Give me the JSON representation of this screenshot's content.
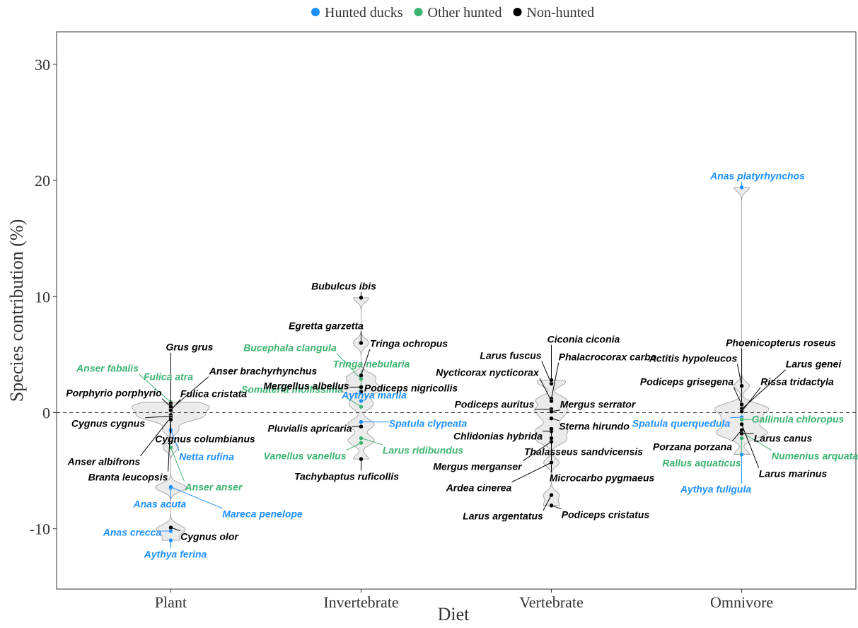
{
  "chart_data": {
    "type": "violin",
    "x_label": "Diet",
    "y_label": "Species contribution (%)",
    "categories": [
      "Plant",
      "Invertebrate",
      "Vertebrate",
      "Omnivore"
    ],
    "ylim": [
      -15.2,
      32.8
    ],
    "yticks": [
      -10,
      0,
      10,
      20,
      30
    ],
    "hline": 0,
    "legend": "top",
    "series": [
      {
        "name": "Hunted ducks",
        "color": "#1e90ff",
        "species": [
          "Netta rufina",
          "Anas acuta",
          "Mareca penelope",
          "Anas crecca",
          "Aythya ferina",
          "Aythya marila",
          "Spatula clypeata",
          "Anas platyrhynchos",
          "Spatula querquedula",
          "Aythya fuligula"
        ],
        "categories": [
          "Plant",
          "Plant",
          "Plant",
          "Plant",
          "Plant",
          "Invertebrate",
          "Invertebrate",
          "Omnivore",
          "Omnivore",
          "Omnivore"
        ],
        "values": [
          -1.5,
          -6.5,
          -6.4,
          -10.2,
          -11.0,
          1.0,
          -0.8,
          19.4,
          -0.4,
          -3.6
        ]
      },
      {
        "name": "Other hunted",
        "color": "#3cb371",
        "species": [
          "Anser fabalis",
          "Fulica atra",
          "Anser anser",
          "Bucephala clangula",
          "Tringa nebularia",
          "Somateria mollissima",
          "Vanellus vanellus",
          "Larus ridibundus",
          "Gallinula chloropus",
          "Rallus aquaticus",
          "Numenius arquata"
        ],
        "categories": [
          "Plant",
          "Plant",
          "Plant",
          "Invertebrate",
          "Invertebrate",
          "Invertebrate",
          "Invertebrate",
          "Invertebrate",
          "Omnivore",
          "Omnivore",
          "Omnivore"
        ],
        "values": [
          0.9,
          0.6,
          -3.0,
          2.9,
          2.1,
          0.5,
          -2.6,
          -2.2,
          -0.6,
          -2.2,
          -1.7
        ]
      },
      {
        "name": "Non-hunted",
        "color": "#000000",
        "species": [
          "Grus grus",
          "Anser brachyrhynchus",
          "Porphyrio porphyrio",
          "Fulica cristata",
          "Cygnus cygnus",
          "Cygnus columbianus",
          "Anser albifrons",
          "Branta leucopsis",
          "Cygnus olor",
          "Bubulcus ibis",
          "Egretta garzetta",
          "Tringa ochropus",
          "Mergellus albellus",
          "Podiceps nigricollis",
          "Pluvialis apricaria",
          "Tachybaptus ruficollis",
          "Larus fuscus",
          "Ciconia ciconia",
          "Phalacrocorax carbo",
          "Nycticorax nycticorax",
          "Podiceps auritus",
          "Mergus serrator",
          "Sterna hirundo",
          "Chlidonias hybrida",
          "Thalasseus sandvicensis",
          "Mergus merganser",
          "Microcarbo pygmaeus",
          "Ardea cinerea",
          "Larus argentatus",
          "Podiceps cristatus",
          "Phoenicopterus roseus",
          "Actitis hypoleucos",
          "Larus genei",
          "Podiceps grisegena",
          "Rissa tridactyla",
          "Larus canus",
          "Porzana porzana",
          "Larus marinus"
        ],
        "categories": [
          "Plant",
          "Plant",
          "Plant",
          "Plant",
          "Plant",
          "Plant",
          "Plant",
          "Plant",
          "Plant",
          "Invertebrate",
          "Invertebrate",
          "Invertebrate",
          "Invertebrate",
          "Invertebrate",
          "Invertebrate",
          "Invertebrate",
          "Vertebrate",
          "Vertebrate",
          "Vertebrate",
          "Vertebrate",
          "Vertebrate",
          "Vertebrate",
          "Vertebrate",
          "Vertebrate",
          "Vertebrate",
          "Vertebrate",
          "Vertebrate",
          "Vertebrate",
          "Vertebrate",
          "Vertebrate",
          "Omnivore",
          "Omnivore",
          "Omnivore",
          "Omnivore",
          "Omnivore",
          "Omnivore",
          "Omnivore",
          "Omnivore"
        ],
        "values": [
          0.8,
          0.3,
          0.5,
          0.2,
          -0.3,
          -0.2,
          -0.4,
          -0.6,
          -9.9,
          9.9,
          6.0,
          3.2,
          2.2,
          1.8,
          -1.2,
          -4.0,
          2.5,
          2.8,
          1.2,
          1.0,
          0.3,
          0.1,
          -0.5,
          -1.6,
          -1.4,
          -2.5,
          -2.2,
          -4.3,
          -7.1,
          -8.0,
          0.4,
          2.3,
          0.3,
          0.7,
          0.1,
          -1.8,
          -1.5,
          -1.0
        ]
      }
    ]
  }
}
